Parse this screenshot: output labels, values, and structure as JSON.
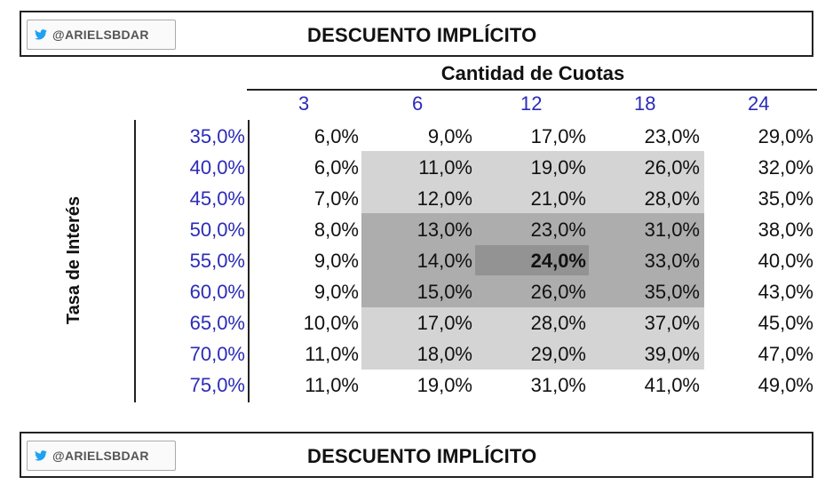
{
  "header": {
    "handle": "@ARIELSBDAR",
    "title": "DESCUENTO IMPLÍCITO"
  },
  "footer": {
    "handle": "@ARIELSBDAR",
    "title": "DESCUENTO IMPLÍCITO"
  },
  "table": {
    "column_group_title": "Cantidad de Cuotas",
    "row_axis_title": "Tasa de Interés",
    "columns": [
      "3",
      "6",
      "12",
      "18",
      "24"
    ],
    "rows": [
      {
        "rate": "35,0%",
        "values": [
          "6,0%",
          "9,0%",
          "17,0%",
          "23,0%",
          "29,0%"
        ]
      },
      {
        "rate": "40,0%",
        "values": [
          "6,0%",
          "11,0%",
          "19,0%",
          "26,0%",
          "32,0%"
        ]
      },
      {
        "rate": "45,0%",
        "values": [
          "7,0%",
          "12,0%",
          "21,0%",
          "28,0%",
          "35,0%"
        ]
      },
      {
        "rate": "50,0%",
        "values": [
          "8,0%",
          "13,0%",
          "23,0%",
          "31,0%",
          "38,0%"
        ]
      },
      {
        "rate": "55,0%",
        "values": [
          "9,0%",
          "14,0%",
          "24,0%",
          "33,0%",
          "40,0%"
        ]
      },
      {
        "rate": "60,0%",
        "values": [
          "9,0%",
          "15,0%",
          "26,0%",
          "35,0%",
          "43,0%"
        ]
      },
      {
        "rate": "65,0%",
        "values": [
          "10,0%",
          "17,0%",
          "28,0%",
          "37,0%",
          "45,0%"
        ]
      },
      {
        "rate": "70,0%",
        "values": [
          "11,0%",
          "18,0%",
          "29,0%",
          "39,0%",
          "47,0%"
        ]
      },
      {
        "rate": "75,0%",
        "values": [
          "11,0%",
          "19,0%",
          "31,0%",
          "41,0%",
          "49,0%"
        ]
      }
    ],
    "highlight_cell": {
      "row": 4,
      "col": 2
    }
  },
  "colors": {
    "rate_text": "#2b2bb8",
    "shade_light": "#d4d4d4",
    "shade_medium": "#adadad",
    "shade_dark": "#939393",
    "twitter_blue": "#1da1f2"
  }
}
